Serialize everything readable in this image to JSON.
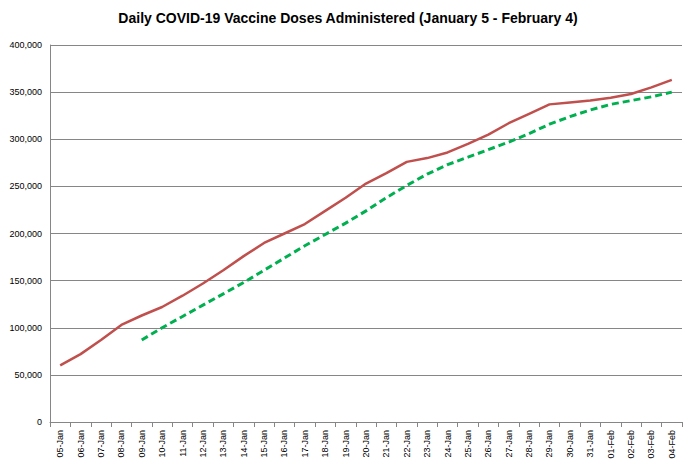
{
  "chart_data": {
    "type": "line",
    "title": "Daily COVID-19 Vaccine Doses Administered (January 5 - February 4)",
    "categories": [
      "05-Jan",
      "06-Jan",
      "07-Jan",
      "08-Jan",
      "09-Jan",
      "10-Jan",
      "11-Jan",
      "12-Jan",
      "13-Jan",
      "14-Jan",
      "15-Jan",
      "16-Jan",
      "17-Jan",
      "18-Jan",
      "19-Jan",
      "20-Jan",
      "21-Jan",
      "22-Jan",
      "23-Jan",
      "24-Jan",
      "25-Jan",
      "26-Jan",
      "27-Jan",
      "28-Jan",
      "29-Jan",
      "30-Jan",
      "31-Jan",
      "01-Feb",
      "02-Feb",
      "03-Feb",
      "04-Feb"
    ],
    "series": [
      {
        "color": "#c0504d",
        "line_style": "solid",
        "values": [
          60000,
          72000,
          87000,
          103000,
          113000,
          122000,
          134000,
          147000,
          161000,
          176000,
          190000,
          200000,
          210000,
          224000,
          238000,
          253000,
          264000,
          276000,
          280000,
          286000,
          295000,
          305000,
          317000,
          327000,
          337000,
          339000,
          341000,
          344000,
          348000,
          355000,
          363000
        ]
      },
      {
        "color": "#00b050",
        "line_style": "dashed",
        "values": [
          null,
          null,
          null,
          null,
          87000,
          100000,
          112000,
          124000,
          136000,
          148000,
          161000,
          174000,
          187000,
          199000,
          211000,
          224000,
          238000,
          251000,
          263000,
          273000,
          281000,
          289000,
          297000,
          306000,
          316000,
          324000,
          331000,
          337000,
          341000,
          345000,
          350000
        ]
      }
    ],
    "ylim": [
      0,
      400000
    ],
    "yticks": [
      {
        "value": 0,
        "label": "0"
      },
      {
        "value": 50000,
        "label": "50,000"
      },
      {
        "value": 100000,
        "label": "100,000"
      },
      {
        "value": 150000,
        "label": "150,000"
      },
      {
        "value": 200000,
        "label": "200,000"
      },
      {
        "value": 250000,
        "label": "250,000"
      },
      {
        "value": 300000,
        "label": "300,000"
      },
      {
        "value": 350000,
        "label": "350,000"
      },
      {
        "value": 400000,
        "label": "400,000"
      }
    ],
    "grid": true
  }
}
